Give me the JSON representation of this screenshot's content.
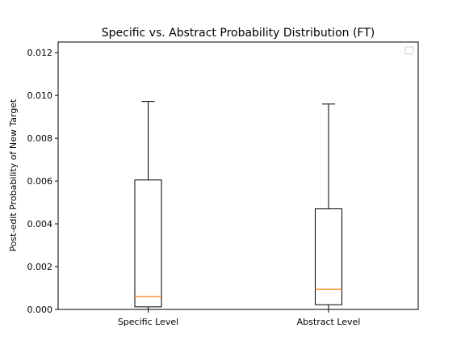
{
  "chart_data": {
    "type": "box",
    "title": "Specific vs. Abstract Probability Distribution (FT)",
    "xlabel": "",
    "ylabel": "Post-edit Probability of New Target",
    "ylim": [
      0,
      0.0125
    ],
    "yticks": [
      "0.000",
      "0.002",
      "0.004",
      "0.006",
      "0.008",
      "0.010",
      "0.012"
    ],
    "ytick_values": [
      0,
      0.002,
      0.004,
      0.006,
      0.008,
      0.01,
      0.012
    ],
    "grid": false,
    "legend": {
      "placement": "top-right",
      "entries": []
    },
    "categories": [
      "Specific Level",
      "Abstract Level"
    ],
    "boxes": [
      {
        "label": "Specific Level",
        "whisker_low": 0.0,
        "q1": 0.00012,
        "median": 0.0006,
        "q3": 0.00605,
        "whisker_high": 0.00972
      },
      {
        "label": "Abstract Level",
        "whisker_low": 0.0,
        "q1": 0.00022,
        "median": 0.00094,
        "q3": 0.0047,
        "whisker_high": 0.0096
      }
    ],
    "colors": {
      "box": "#000000",
      "median": "#ff7f0e",
      "legend_border": "#cccccc"
    }
  }
}
